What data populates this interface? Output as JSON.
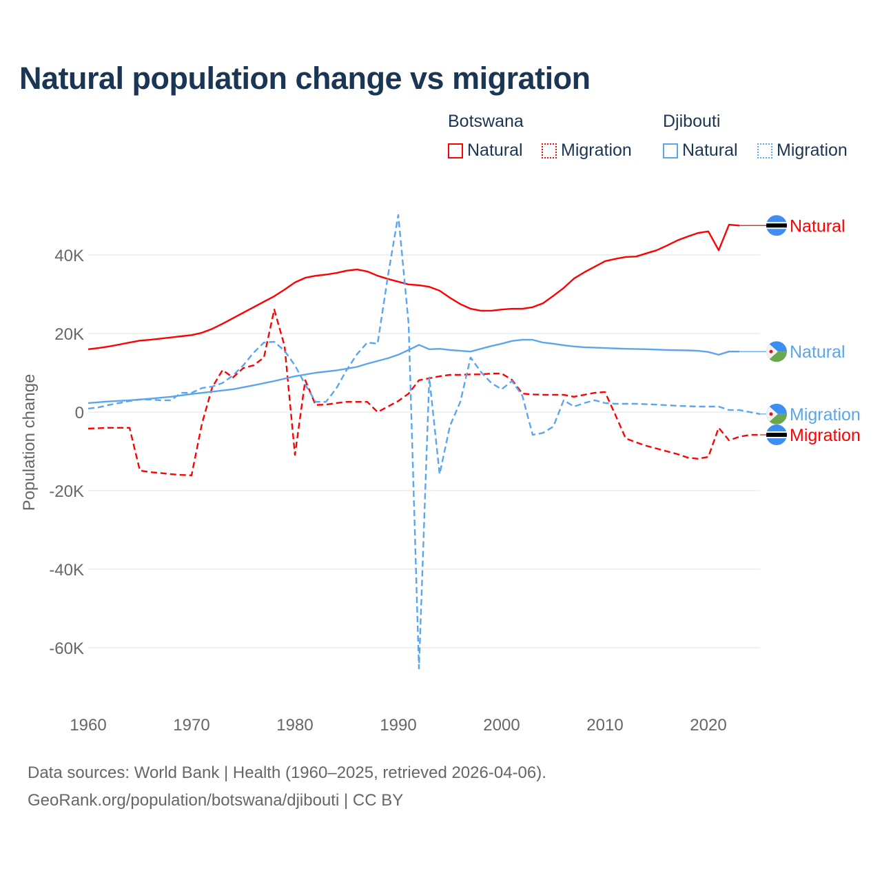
{
  "chart_data": {
    "type": "line",
    "title": "Natural population change vs migration",
    "xlabel": "",
    "ylabel": "Population change",
    "xlim": [
      1960,
      2025
    ],
    "ylim": [
      -70000,
      55000
    ],
    "grid": true,
    "x_ticks": [
      1960,
      1970,
      1980,
      1990,
      2000,
      2010,
      2020
    ],
    "y_ticks": [
      {
        "value": 40000,
        "label": "40K"
      },
      {
        "value": 20000,
        "label": "20K"
      },
      {
        "value": 0,
        "label": "0"
      },
      {
        "value": -20000,
        "label": "-20K"
      },
      {
        "value": -40000,
        "label": "-40K"
      },
      {
        "value": -60000,
        "label": "-60K"
      }
    ],
    "legend": {
      "placement": "top-right",
      "groups": [
        {
          "country": "Botswana",
          "items": [
            "Natural",
            "Migration"
          ]
        },
        {
          "country": "Djibouti",
          "items": [
            "Natural",
            "Migration"
          ]
        }
      ]
    },
    "colors": {
      "Botswana": "#ff0000",
      "Djibouti": "#5aa5ee"
    },
    "series": [
      {
        "country": "Botswana",
        "name": "Natural",
        "style": "solid",
        "end_label": "Natural",
        "x": [
          1960,
          1961,
          1962,
          1963,
          1964,
          1965,
          1966,
          1967,
          1968,
          1969,
          1970,
          1971,
          1972,
          1973,
          1974,
          1975,
          1976,
          1977,
          1978,
          1979,
          1980,
          1981,
          1982,
          1983,
          1984,
          1985,
          1986,
          1987,
          1988,
          1989,
          1990,
          1991,
          1992,
          1993,
          1994,
          1995,
          1996,
          1997,
          1998,
          1999,
          2000,
          2001,
          2002,
          2003,
          2004,
          2005,
          2006,
          2007,
          2008,
          2009,
          2010,
          2011,
          2012,
          2013,
          2014,
          2015,
          2016,
          2017,
          2018,
          2019,
          2020,
          2021,
          2022,
          2023
        ],
        "y": [
          16000,
          16300,
          16700,
          17200,
          17700,
          18200,
          18400,
          18700,
          19000,
          19300,
          19600,
          20200,
          21200,
          22500,
          23900,
          25300,
          26700,
          28100,
          29500,
          31200,
          33000,
          34200,
          34700,
          35000,
          35400,
          36000,
          36300,
          35800,
          34700,
          33900,
          33200,
          32500,
          32300,
          31900,
          30900,
          29100,
          27500,
          26300,
          25800,
          25800,
          26100,
          26300,
          26300,
          26700,
          27700,
          29600,
          31600,
          34000,
          35600,
          37000,
          38400,
          39000,
          39500,
          39600,
          40400,
          41200,
          42400,
          43700,
          44700,
          45600,
          46000,
          41200,
          47700,
          47500
        ]
      },
      {
        "country": "Botswana",
        "name": "Migration",
        "style": "dashed",
        "end_label": "Migration",
        "x": [
          1960,
          1961,
          1962,
          1963,
          1964,
          1965,
          1966,
          1967,
          1968,
          1969,
          1970,
          1971,
          1972,
          1973,
          1974,
          1975,
          1976,
          1977,
          1978,
          1979,
          1980,
          1981,
          1982,
          1983,
          1984,
          1985,
          1986,
          1987,
          1988,
          1989,
          1990,
          1991,
          1992,
          1993,
          1994,
          1995,
          1996,
          1997,
          1998,
          1999,
          2000,
          2001,
          2002,
          2003,
          2004,
          2005,
          2006,
          2007,
          2008,
          2009,
          2010,
          2011,
          2012,
          2013,
          2014,
          2015,
          2016,
          2017,
          2018,
          2019,
          2020,
          2021,
          2022,
          2023,
          2024,
          2025
        ],
        "y": [
          -4200,
          -4100,
          -4000,
          -4000,
          -4000,
          -14900,
          -15300,
          -15500,
          -15800,
          -16000,
          -16100,
          -3000,
          6300,
          10700,
          8800,
          11200,
          11900,
          13900,
          26100,
          16800,
          -10900,
          8100,
          1800,
          1900,
          2300,
          2600,
          2600,
          2600,
          0,
          1400,
          2800,
          4700,
          8100,
          8600,
          9100,
          9500,
          9500,
          9600,
          9600,
          9800,
          9800,
          8200,
          4700,
          4500,
          4400,
          4400,
          4400,
          3900,
          4400,
          4900,
          5100,
          -700,
          -6700,
          -7700,
          -8600,
          -9300,
          -10000,
          -10700,
          -11600,
          -11900,
          -11400,
          -4000,
          -7200,
          -6300,
          -5800,
          -5800
        ]
      },
      {
        "country": "Djibouti",
        "name": "Natural",
        "style": "solid",
        "end_label": "Natural",
        "x": [
          1960,
          1962,
          1964,
          1966,
          1968,
          1970,
          1972,
          1974,
          1976,
          1978,
          1980,
          1982,
          1984,
          1986,
          1987,
          1988,
          1989,
          1990,
          1991,
          1992,
          1993,
          1994,
          1995,
          1996,
          1997,
          1998,
          1999,
          2000,
          2001,
          2002,
          2003,
          2004,
          2005,
          2006,
          2007,
          2008,
          2010,
          2012,
          2014,
          2016,
          2018,
          2019,
          2020,
          2021,
          2022,
          2023
        ],
        "y": [
          2300,
          2700,
          3000,
          3400,
          3900,
          4600,
          5200,
          5800,
          6800,
          7900,
          9100,
          10000,
          10600,
          11500,
          12300,
          13000,
          13700,
          14600,
          15800,
          17100,
          16000,
          16100,
          15800,
          15600,
          15400,
          16100,
          16800,
          17400,
          18100,
          18400,
          18400,
          17700,
          17400,
          17000,
          16700,
          16500,
          16300,
          16100,
          16000,
          15800,
          15700,
          15600,
          15300,
          14600,
          15400,
          15400
        ]
      },
      {
        "country": "Djibouti",
        "name": "Migration",
        "style": "dashed",
        "end_label": "Migration",
        "x": [
          1960,
          1961,
          1962,
          1963,
          1964,
          1965,
          1966,
          1967,
          1968,
          1969,
          1970,
          1971,
          1972,
          1973,
          1974,
          1975,
          1976,
          1977,
          1978,
          1979,
          1980,
          1981,
          1982,
          1983,
          1984,
          1985,
          1986,
          1987,
          1988,
          1989,
          1990,
          1991,
          1992,
          1993,
          1994,
          1995,
          1996,
          1997,
          1998,
          1999,
          2000,
          2001,
          2002,
          2003,
          2004,
          2005,
          2006,
          2007,
          2008,
          2009,
          2010,
          2011,
          2013,
          2015,
          2017,
          2019,
          2020,
          2021,
          2022,
          2023,
          2024,
          2025
        ],
        "y": [
          900,
          1200,
          1800,
          2300,
          2800,
          3200,
          3200,
          3000,
          3000,
          4900,
          4900,
          6100,
          6500,
          7400,
          9300,
          11900,
          15100,
          17700,
          17900,
          15600,
          11900,
          7000,
          2600,
          2600,
          6000,
          10700,
          14700,
          17700,
          17400,
          34700,
          50200,
          22500,
          -65300,
          8800,
          -15800,
          -3500,
          2600,
          13900,
          10200,
          7400,
          5800,
          7900,
          4200,
          -5800,
          -5300,
          -3700,
          3000,
          1400,
          2300,
          3000,
          2300,
          2100,
          2100,
          1900,
          1600,
          1400,
          1400,
          1400,
          500,
          500,
          0,
          -500
        ]
      }
    ]
  },
  "footer": {
    "line1": "Data sources: World Bank | Health (1960–2025, retrieved 2026-04-06).",
    "line2": "GeoRank.org/population/botswana/djibouti | CC BY"
  }
}
